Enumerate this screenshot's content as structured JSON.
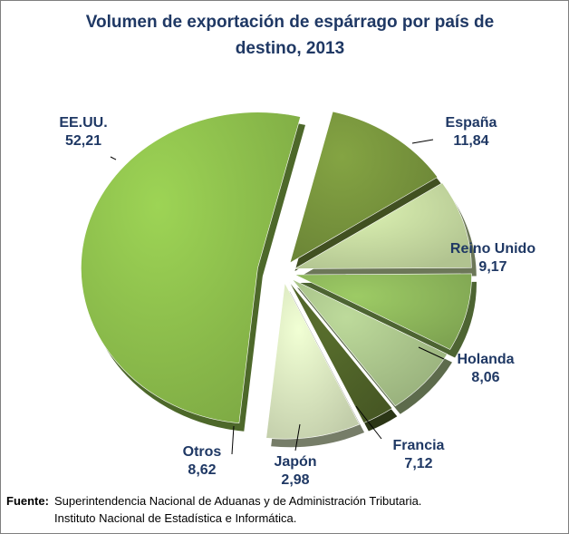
{
  "chart_data": {
    "type": "pie",
    "title": "Volumen de exportación de espárrago por país de destino,  2013",
    "slices": [
      {
        "label": "EE.UU.",
        "value_label": "52,21",
        "value": 52.21,
        "color": "#8cbd4c"
      },
      {
        "label": "España",
        "value_label": "11,84",
        "value": 11.84,
        "color": "#76923c"
      },
      {
        "label": "Reino Unido",
        "value_label": "9,17",
        "value": 9.17,
        "color": "#c5d9a0"
      },
      {
        "label": "Holanda",
        "value_label": "8,06",
        "value": 8.06,
        "color": "#8cb55a"
      },
      {
        "label": "Francia",
        "value_label": "7,12",
        "value": 7.12,
        "color": "#a9c38a"
      },
      {
        "label": "Japón",
        "value_label": "2,98",
        "value": 2.98,
        "color": "#4f6228"
      },
      {
        "label": "Otros",
        "value_label": "8,62",
        "value": 8.62,
        "color": "#d7e4bd"
      }
    ],
    "legend": "none",
    "label_color": "#1f3864"
  },
  "source": {
    "label": "Fuente:",
    "line1": "Superintendencia Nacional de Aduanas y de Administración Tributaria.",
    "line2": "Instituto  Nacional de Estadística e Informática."
  }
}
